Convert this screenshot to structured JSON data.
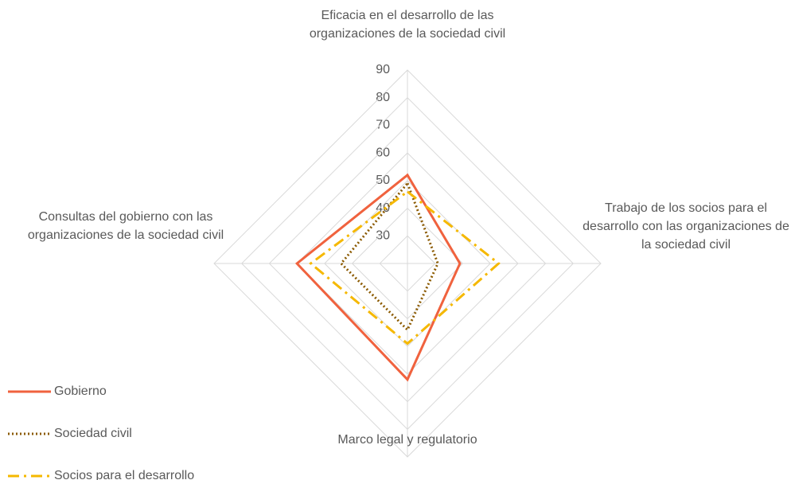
{
  "chart_data": {
    "type": "radar",
    "categories": [
      "Eficacia en el desarrollo de las organizaciones de la sociedad civil",
      "Trabajo de los socios para el desarrollo con las organizaciones de la sociedad civil",
      "Marco legal y regulatorio",
      "Consultas del gobierno con las organizaciones de la sociedad civil"
    ],
    "series": [
      {
        "name": "Gobierno",
        "color": "#f0623e",
        "dash": "solid",
        "values": [
          52,
          39,
          62,
          60
        ]
      },
      {
        "name": "Sociedad civil",
        "color": "#8b5a00",
        "dash": "dot",
        "values": [
          49,
          31,
          44,
          44
        ]
      },
      {
        "name": "Socios para el desarrollo",
        "color": "#f5b800",
        "dash": "dashdot",
        "values": [
          46,
          53,
          49,
          55
        ]
      }
    ],
    "ylim": [
      20,
      90
    ],
    "yticks": [
      30,
      40,
      50,
      60,
      70,
      80,
      90
    ],
    "grid": true,
    "legend": "left"
  }
}
